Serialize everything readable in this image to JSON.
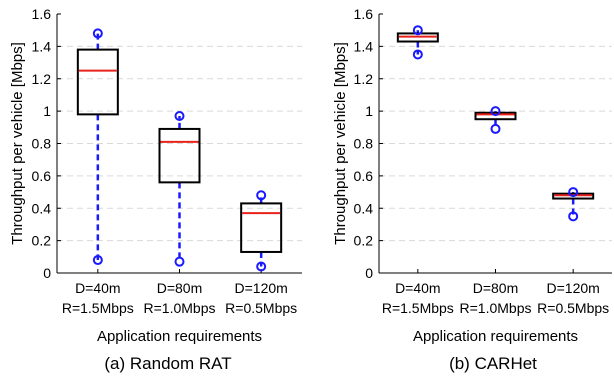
{
  "chart_data": [
    {
      "type": "box",
      "caption": "(a) Random RAT",
      "xlabel": "Application requirements",
      "ylabel": "Throughput per vehicle [Mbps]",
      "ylim": [
        0,
        1.6
      ],
      "yticks": [
        "0",
        "0.2",
        "0.4",
        "0.6",
        "0.8",
        "1",
        "1.2",
        "1.4",
        "1.6"
      ],
      "grid": "horizontal dashed",
      "categories": [
        {
          "line1": "D=40m",
          "line2": "R=1.5Mbps"
        },
        {
          "line1": "D=80m",
          "line2": "R=1.0Mbps"
        },
        {
          "line1": "D=120m",
          "line2": "R=0.5Mbps"
        }
      ],
      "boxes": [
        {
          "min": 0.08,
          "q1": 0.98,
          "median": 1.25,
          "q3": 1.38,
          "max": 1.48
        },
        {
          "min": 0.07,
          "q1": 0.56,
          "median": 0.81,
          "q3": 0.89,
          "max": 0.97
        },
        {
          "min": 0.04,
          "q1": 0.13,
          "median": 0.37,
          "q3": 0.43,
          "max": 0.48
        }
      ]
    },
    {
      "type": "box",
      "caption": "(b) CARHet",
      "xlabel": "Application requirements",
      "ylabel": "Throughput per vehicle [Mbps]",
      "ylim": [
        0,
        1.6
      ],
      "yticks": [
        "0",
        "0.2",
        "0.4",
        "0.6",
        "0.8",
        "1",
        "1.2",
        "1.4",
        "1.6"
      ],
      "grid": "horizontal dashed",
      "categories": [
        {
          "line1": "D=40m",
          "line2": "R=1.5Mbps"
        },
        {
          "line1": "D=80m",
          "line2": "R=1.0Mbps"
        },
        {
          "line1": "D=120m",
          "line2": "R=0.5Mbps"
        }
      ],
      "boxes": [
        {
          "min": 1.35,
          "q1": 1.43,
          "median": 1.46,
          "q3": 1.48,
          "max": 1.5
        },
        {
          "min": 0.89,
          "q1": 0.95,
          "median": 0.98,
          "q3": 0.99,
          "max": 1.0
        },
        {
          "min": 0.35,
          "q1": 0.46,
          "median": 0.48,
          "q3": 0.49,
          "max": 0.5
        }
      ]
    }
  ],
  "colors": {
    "box": "#000000",
    "median": "#e8221a",
    "whisker": "#1a1aff",
    "grid": "#d9d9d9"
  }
}
